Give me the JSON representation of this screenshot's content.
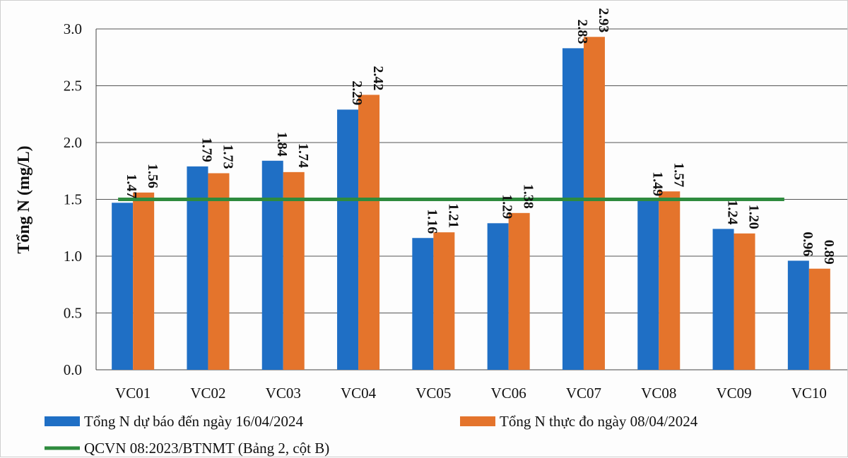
{
  "chart_data": {
    "type": "bar",
    "title": "",
    "xlabel": "",
    "ylabel": "Tổng N (mg/L)",
    "ylim": [
      0,
      3.0
    ],
    "yticks": [
      "0.0",
      "0.5",
      "1.0",
      "1.5",
      "2.0",
      "2.5",
      "3.0"
    ],
    "grid": true,
    "legend_position": "bottom",
    "categories": [
      "VC01",
      "VC02",
      "VC03",
      "VC04",
      "VC05",
      "VC06",
      "VC07",
      "VC08",
      "VC09",
      "VC10"
    ],
    "series": [
      {
        "name": "Tổng N dự báo đến ngày 16/04/2024",
        "color": "#1f6fc5",
        "values": [
          1.47,
          1.79,
          1.84,
          2.29,
          1.16,
          1.29,
          2.83,
          1.49,
          1.24,
          0.96
        ],
        "labels": [
          "1.47",
          "1.79",
          "1.84",
          "2.29",
          "1.16",
          "1.29",
          "2.83",
          "1.49",
          "1.24",
          "0.96"
        ]
      },
      {
        "name": "Tổng N thực đo ngày 08/04/2024",
        "color": "#e4742c",
        "values": [
          1.56,
          1.73,
          1.74,
          2.42,
          1.21,
          1.38,
          2.93,
          1.57,
          1.2,
          0.89
        ],
        "labels": [
          "1.56",
          "1.73",
          "1.74",
          "2.42",
          "1.21",
          "1.38",
          "2.93",
          "1.57",
          "1.20",
          "0.89"
        ]
      }
    ],
    "reference_line": {
      "name": "QCVN 08:2023/BTNMT (Bảng 2, cột B)",
      "value": 1.5,
      "color": "#2e8b3e"
    }
  }
}
